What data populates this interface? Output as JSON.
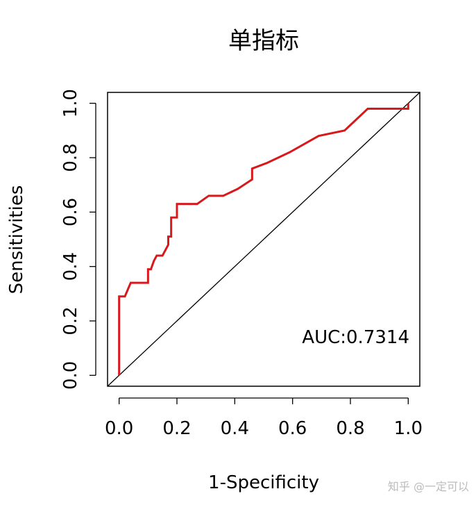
{
  "chart_data": {
    "type": "line",
    "title": "单指标",
    "x_label": "1-Specificity",
    "y_label": "Sensitivities",
    "annotation": "AUC:0.7314",
    "watermark": "知乎 @一定可以",
    "x": [
      0,
      0,
      0.02,
      0.04,
      0.1,
      0.1,
      0.11,
      0.12,
      0.13,
      0.15,
      0.17,
      0.17,
      0.18,
      0.18,
      0.2,
      0.2,
      0.27,
      0.31,
      0.36,
      0.41,
      0.46,
      0.46,
      0.51,
      0.59,
      0.69,
      0.78,
      0.86,
      1,
      1
    ],
    "values": [
      0,
      0.29,
      0.29,
      0.34,
      0.34,
      0.39,
      0.39,
      0.42,
      0.44,
      0.44,
      0.48,
      0.51,
      0.51,
      0.58,
      0.58,
      0.63,
      0.63,
      0.66,
      0.66,
      0.685,
      0.72,
      0.76,
      0.78,
      0.82,
      0.88,
      0.9,
      0.98,
      0.98,
      1
    ],
    "color": "#d7191c",
    "xlim": [
      -0.04,
      1.04
    ],
    "ylim": [
      -0.04,
      1.04
    ],
    "xticks": [
      {
        "value": 0,
        "label": "0.0"
      },
      0.2,
      0.4,
      0.6,
      0.8,
      {
        "value": 1,
        "label": "1.0"
      }
    ],
    "yticks": [
      {
        "value": 0,
        "label": "0.0"
      },
      0.2,
      0.4,
      0.6,
      0.8,
      {
        "value": 1,
        "label": "1.0"
      }
    ]
  }
}
